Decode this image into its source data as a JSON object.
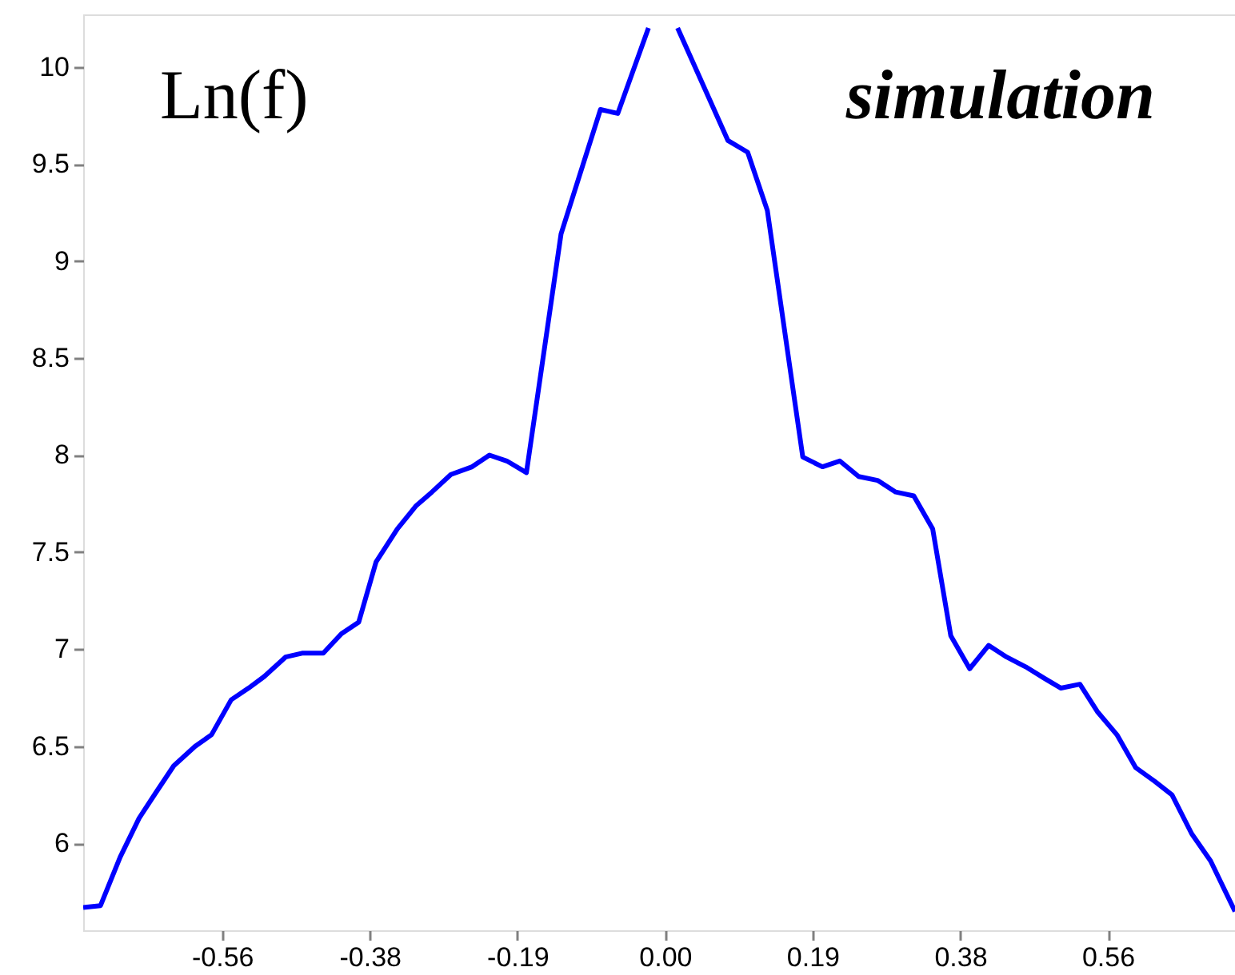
{
  "chart_data": {
    "type": "line",
    "annotations": [
      "Ln(f)",
      "simulation"
    ],
    "x": [
      -0.739,
      -0.717,
      -0.692,
      -0.668,
      -0.647,
      -0.624,
      -0.597,
      -0.576,
      -0.551,
      -0.529,
      -0.509,
      -0.482,
      -0.461,
      -0.434,
      -0.411,
      -0.389,
      -0.367,
      -0.34,
      -0.316,
      -0.296,
      -0.272,
      -0.245,
      -0.223,
      -0.201,
      -0.176,
      -0.132,
      -0.082,
      -0.06,
      -0.021,
      0,
      0.016,
      0.08,
      0.105,
      0.13,
      0.175,
      0.2,
      0.222,
      0.246,
      0.27,
      0.293,
      0.316,
      0.34,
      0.363,
      0.387,
      0.411,
      0.434,
      0.458,
      0.482,
      0.503,
      0.527,
      0.549,
      0.574,
      0.598,
      0.622,
      0.644,
      0.669,
      0.693,
      0.724
    ],
    "series": [
      {
        "color": "#0000ff",
        "values": [
          5.67,
          5.68,
          5.93,
          6.13,
          6.26,
          6.4,
          6.5,
          6.56,
          6.74,
          6.8,
          6.86,
          6.96,
          6.98,
          6.98,
          7.08,
          7.14,
          7.45,
          7.62,
          7.74,
          7.81,
          7.9,
          7.94,
          8.0,
          7.97,
          7.91,
          9.14,
          9.78,
          9.76,
          10.2,
          null,
          10.2,
          9.62,
          9.56,
          9.26,
          7.99,
          7.94,
          7.97,
          7.89,
          7.87,
          7.81,
          7.79,
          7.62,
          7.07,
          6.9,
          7.02,
          6.96,
          6.91,
          6.85,
          6.8,
          6.82,
          6.68,
          6.56,
          6.39,
          6.32,
          6.25,
          6.05,
          5.91,
          5.65
        ]
      }
    ],
    "xlim": [
      -0.739,
      0.724
    ],
    "ylim": [
      5.553,
      10.27
    ],
    "xticks": [
      {
        "value": -0.5625,
        "label": "-0.56"
      },
      {
        "value": -0.375,
        "label": "-0.38"
      },
      {
        "value": -0.1875,
        "label": "-0.19"
      },
      {
        "value": 0,
        "label": "0.00"
      },
      {
        "value": 0.1875,
        "label": "0.19"
      },
      {
        "value": 0.375,
        "label": "0.38"
      },
      {
        "value": 0.5625,
        "label": "0.56"
      }
    ],
    "yticks": [
      6,
      6.5,
      7,
      7.5,
      8,
      8.5,
      9,
      9.5,
      10
    ],
    "grid": false,
    "marker": "none",
    "line_style": "solid"
  }
}
